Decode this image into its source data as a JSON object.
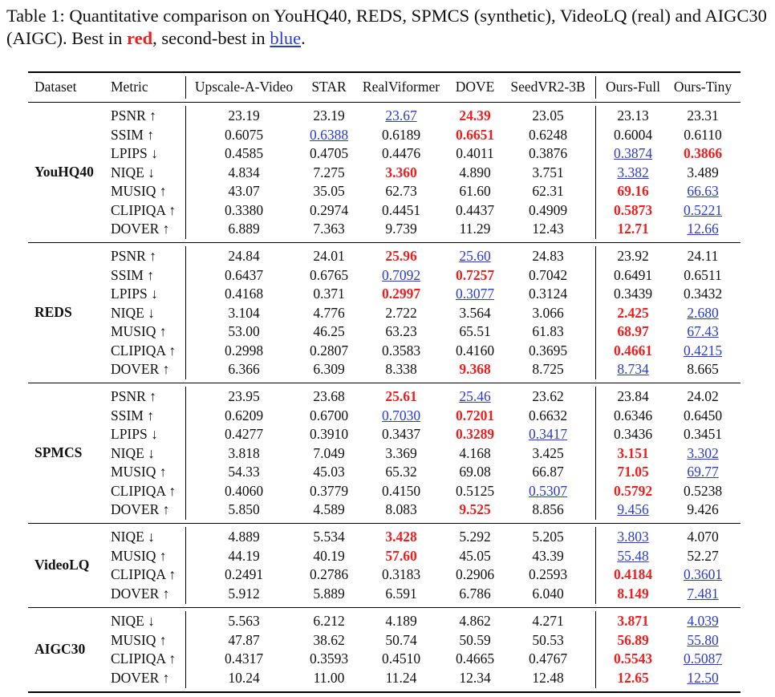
{
  "caption": {
    "prefix": "Table 1:  Quantitative comparison on YouHQ40, REDS, SPMCS (synthetic), VideoLQ (real) and AIGC30 (AIGC). Best in ",
    "red_word": "red",
    "middle": ", second-best in ",
    "blue_word": "blue",
    "suffix": "."
  },
  "headers": [
    "Dataset",
    "Metric",
    "Upscale-A-Video",
    "STAR",
    "RealViformer",
    "DOVE",
    "SeedVR2-3B",
    "Ours-Full",
    "Ours-Tiny"
  ],
  "colors": {
    "best": "#ef1f1f",
    "second": "#2a3bd4"
  },
  "groups": [
    {
      "dataset": "YouHQ40",
      "rows": [
        {
          "metric": "PSNR ↑",
          "values": [
            "23.19",
            "23.19",
            "23.67",
            "24.39",
            "23.05",
            "23.13",
            "23.31"
          ],
          "marks": [
            "",
            "",
            "s",
            "b",
            "",
            "",
            ""
          ]
        },
        {
          "metric": "SSIM ↑",
          "values": [
            "0.6075",
            "0.6388",
            "0.6189",
            "0.6651",
            "0.6248",
            "0.6004",
            "0.6110"
          ],
          "marks": [
            "",
            "s",
            "",
            "b",
            "",
            "",
            ""
          ]
        },
        {
          "metric": "LPIPS ↓",
          "values": [
            "0.4585",
            "0.4705",
            "0.4476",
            "0.4011",
            "0.3876",
            "0.3874",
            "0.3866"
          ],
          "marks": [
            "",
            "",
            "",
            "",
            "",
            "s",
            "b"
          ]
        },
        {
          "metric": "NIQE ↓",
          "values": [
            "4.834",
            "7.275",
            "3.360",
            "4.890",
            "3.751",
            "3.382",
            "3.489"
          ],
          "marks": [
            "",
            "",
            "b",
            "",
            "",
            "s",
            ""
          ]
        },
        {
          "metric": "MUSIQ ↑",
          "values": [
            "43.07",
            "35.05",
            "62.73",
            "61.60",
            "62.31",
            "69.16",
            "66.63"
          ],
          "marks": [
            "",
            "",
            "",
            "",
            "",
            "b",
            "s"
          ]
        },
        {
          "metric": "CLIPIQA ↑",
          "values": [
            "0.3380",
            "0.2974",
            "0.4451",
            "0.4437",
            "0.4909",
            "0.5873",
            "0.5221"
          ],
          "marks": [
            "",
            "",
            "",
            "",
            "",
            "b",
            "s"
          ]
        },
        {
          "metric": "DOVER ↑",
          "values": [
            "6.889",
            "7.363",
            "9.739",
            "11.29",
            "12.43",
            "12.71",
            "12.66"
          ],
          "marks": [
            "",
            "",
            "",
            "",
            "",
            "b",
            "s"
          ]
        }
      ]
    },
    {
      "dataset": "REDS",
      "rows": [
        {
          "metric": "PSNR ↑",
          "values": [
            "24.84",
            "24.01",
            "25.96",
            "25.60",
            "24.83",
            "23.92",
            "24.11"
          ],
          "marks": [
            "",
            "",
            "b",
            "s",
            "",
            "",
            ""
          ]
        },
        {
          "metric": "SSIM ↑",
          "values": [
            "0.6437",
            "0.6765",
            "0.7092",
            "0.7257",
            "0.7042",
            "0.6491",
            "0.6511"
          ],
          "marks": [
            "",
            "",
            "s",
            "b",
            "",
            "",
            ""
          ]
        },
        {
          "metric": "LPIPS ↓",
          "values": [
            "0.4168",
            "0.371",
            "0.2997",
            "0.3077",
            "0.3124",
            "0.3439",
            "0.3432"
          ],
          "marks": [
            "",
            "",
            "b",
            "s",
            "",
            "",
            ""
          ]
        },
        {
          "metric": "NIQE ↓",
          "values": [
            "3.104",
            "4.776",
            "2.722",
            "3.564",
            "3.066",
            "2.425",
            "2.680"
          ],
          "marks": [
            "",
            "",
            "",
            "",
            "",
            "b",
            "s"
          ]
        },
        {
          "metric": "MUSIQ ↑",
          "values": [
            "53.00",
            "46.25",
            "63.23",
            "65.51",
            "61.83",
            "68.97",
            "67.43"
          ],
          "marks": [
            "",
            "",
            "",
            "",
            "",
            "b",
            "s"
          ]
        },
        {
          "metric": "CLIPIQA ↑",
          "values": [
            "0.2998",
            "0.2807",
            "0.3583",
            "0.4160",
            "0.3695",
            "0.4661",
            "0.4215"
          ],
          "marks": [
            "",
            "",
            "",
            "",
            "",
            "b",
            "s"
          ]
        },
        {
          "metric": "DOVER ↑",
          "values": [
            "6.366",
            "6.309",
            "8.338",
            "9.368",
            "8.725",
            "8.734",
            "8.665"
          ],
          "marks": [
            "",
            "",
            "",
            "b",
            "",
            "s",
            ""
          ]
        }
      ]
    },
    {
      "dataset": "SPMCS",
      "rows": [
        {
          "metric": "PSNR ↑",
          "values": [
            "23.95",
            "23.68",
            "25.61",
            "25.46",
            "23.62",
            "23.84",
            "24.02"
          ],
          "marks": [
            "",
            "",
            "b",
            "s",
            "",
            "",
            ""
          ]
        },
        {
          "metric": "SSIM ↑",
          "values": [
            "0.6209",
            "0.6700",
            "0.7030",
            "0.7201",
            "0.6632",
            "0.6346",
            "0.6450"
          ],
          "marks": [
            "",
            "",
            "s",
            "b",
            "",
            "",
            ""
          ]
        },
        {
          "metric": "LPIPS ↓",
          "values": [
            "0.4277",
            "0.3910",
            "0.3437",
            "0.3289",
            "0.3417",
            "0.3436",
            "0.3451"
          ],
          "marks": [
            "",
            "",
            "",
            "b",
            "s",
            "",
            ""
          ]
        },
        {
          "metric": "NIQE ↓",
          "values": [
            "3.818",
            "7.049",
            "3.369",
            "4.168",
            "3.425",
            "3.151",
            "3.302"
          ],
          "marks": [
            "",
            "",
            "",
            "",
            "",
            "b",
            "s"
          ]
        },
        {
          "metric": "MUSIQ ↑",
          "values": [
            "54.33",
            "45.03",
            "65.32",
            "69.08",
            "66.87",
            "71.05",
            "69.77"
          ],
          "marks": [
            "",
            "",
            "",
            "",
            "",
            "b",
            "s"
          ]
        },
        {
          "metric": "CLIPIQA ↑",
          "values": [
            "0.4060",
            "0.3779",
            "0.4150",
            "0.5125",
            "0.5307",
            "0.5792",
            "0.5238"
          ],
          "marks": [
            "",
            "",
            "",
            "",
            "s",
            "b",
            ""
          ]
        },
        {
          "metric": "DOVER ↑",
          "values": [
            "5.850",
            "4.589",
            "8.083",
            "9.525",
            "8.856",
            "9.456",
            "9.426"
          ],
          "marks": [
            "",
            "",
            "",
            "b",
            "",
            "s",
            ""
          ]
        }
      ]
    },
    {
      "dataset": "VideoLQ",
      "rows": [
        {
          "metric": "NIQE ↓",
          "values": [
            "4.889",
            "5.534",
            "3.428",
            "5.292",
            "5.205",
            "3.803",
            "4.070"
          ],
          "marks": [
            "",
            "",
            "b",
            "",
            "",
            "s",
            ""
          ]
        },
        {
          "metric": "MUSIQ ↑",
          "values": [
            "44.19",
            "40.19",
            "57.60",
            "45.05",
            "43.39",
            "55.48",
            "52.27"
          ],
          "marks": [
            "",
            "",
            "b",
            "",
            "",
            "s",
            ""
          ]
        },
        {
          "metric": "CLIPIQA ↑",
          "values": [
            "0.2491",
            "0.2786",
            "0.3183",
            "0.2906",
            "0.2593",
            "0.4184",
            "0.3601"
          ],
          "marks": [
            "",
            "",
            "",
            "",
            "",
            "b",
            "s"
          ]
        },
        {
          "metric": "DOVER ↑",
          "values": [
            "5.912",
            "5.889",
            "6.591",
            "6.786",
            "6.040",
            "8.149",
            "7.481"
          ],
          "marks": [
            "",
            "",
            "",
            "",
            "",
            "b",
            "s"
          ]
        }
      ]
    },
    {
      "dataset": "AIGC30",
      "rows": [
        {
          "metric": "NIQE ↓",
          "values": [
            "5.563",
            "6.212",
            "4.189",
            "4.862",
            "4.271",
            "3.871",
            "4.039"
          ],
          "marks": [
            "",
            "",
            "",
            "",
            "",
            "b",
            "s"
          ]
        },
        {
          "metric": "MUSIQ ↑",
          "values": [
            "47.87",
            "38.62",
            "50.74",
            "50.59",
            "50.53",
            "56.89",
            "55.80"
          ],
          "marks": [
            "",
            "",
            "",
            "",
            "",
            "b",
            "s"
          ]
        },
        {
          "metric": "CLIPIQA ↑",
          "values": [
            "0.4317",
            "0.3593",
            "0.4510",
            "0.4665",
            "0.4767",
            "0.5543",
            "0.5087"
          ],
          "marks": [
            "",
            "",
            "",
            "",
            "",
            "b",
            "s"
          ]
        },
        {
          "metric": "DOVER ↑",
          "values": [
            "10.24",
            "11.00",
            "11.24",
            "12.34",
            "12.48",
            "12.65",
            "12.50"
          ],
          "marks": [
            "",
            "",
            "",
            "",
            "",
            "b",
            "s"
          ]
        }
      ]
    }
  ]
}
